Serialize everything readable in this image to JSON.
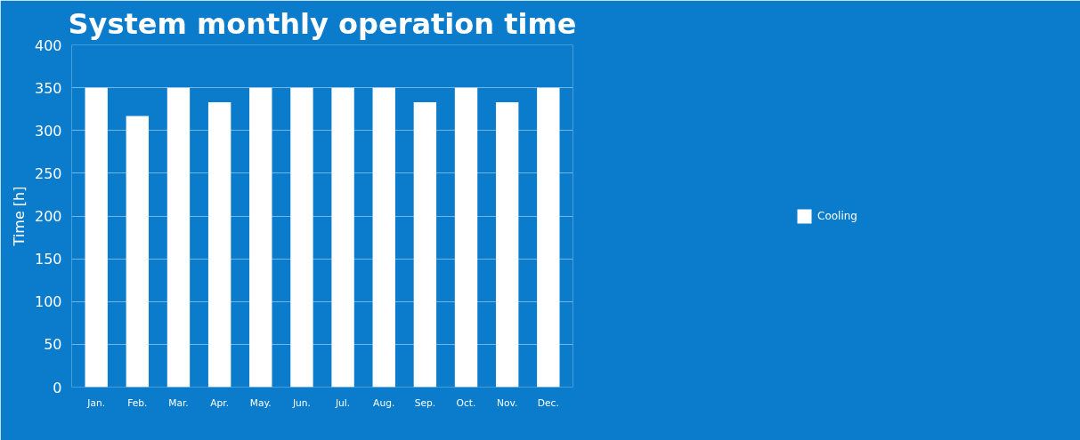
{
  "chart_data": {
    "type": "bar",
    "title": "System monthly operation time",
    "ylabel": "Time [h]",
    "categories": [
      "Jan.",
      "Feb.",
      "Mar.",
      "Apr.",
      "May.",
      "Jun.",
      "Jul.",
      "Aug.",
      "Sep.",
      "Oct.",
      "Nov.",
      "Dec."
    ],
    "series": [
      {
        "name": "Cooling",
        "color": "#ffffff",
        "values": [
          350,
          317,
          350,
          333,
          350,
          350,
          350,
          350,
          333,
          350,
          333,
          350
        ]
      }
    ],
    "ylim": [
      0,
      400
    ],
    "yticks": [
      0,
      50,
      100,
      150,
      200,
      250,
      300,
      350,
      400
    ],
    "grid": "y",
    "legend": "right"
  }
}
